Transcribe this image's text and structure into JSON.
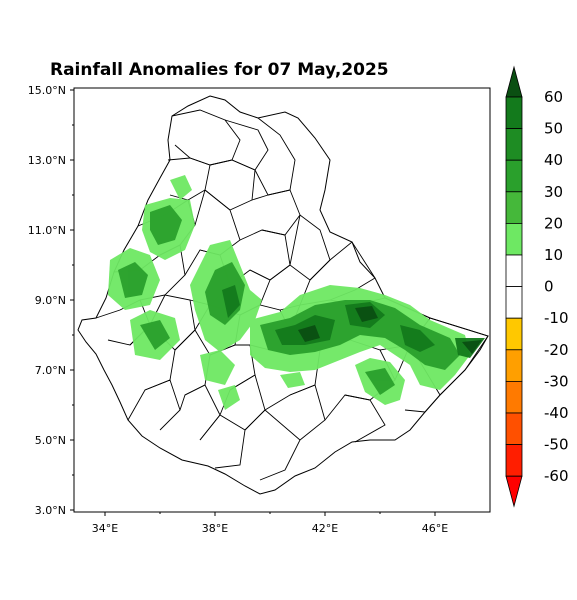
{
  "map": {
    "title": "Rainfall Anomalies for 07 May,2025",
    "lat_labels": [
      "15.0°N",
      "13.0°N",
      "11.0°N",
      "9.0°N",
      "7.0°N",
      "5.0°N",
      "3.0°N"
    ],
    "lon_labels": [
      "34°E",
      "38°E",
      "42°E",
      "46°E"
    ]
  },
  "colorbar": {
    "labels": [
      "60",
      "50",
      "40",
      "30",
      "20",
      "10",
      "0",
      "-10",
      "-20",
      "-30",
      "-40",
      "-50",
      "-60"
    ],
    "colors": [
      "#0a4f12",
      "#137a1c",
      "#1e8c23",
      "#2aa02c",
      "#45b83a",
      "#6ee863",
      "#ffffff",
      "#ffffff",
      "#ffc800",
      "#ff9f00",
      "#ff7a00",
      "#ff5000",
      "#ff1e00",
      "#ff0000"
    ]
  },
  "legend_colors": {
    "positive_anomaly": "#2aa02c",
    "strong_positive": "#0a4f12",
    "negative_anomaly": "#ff5000"
  }
}
